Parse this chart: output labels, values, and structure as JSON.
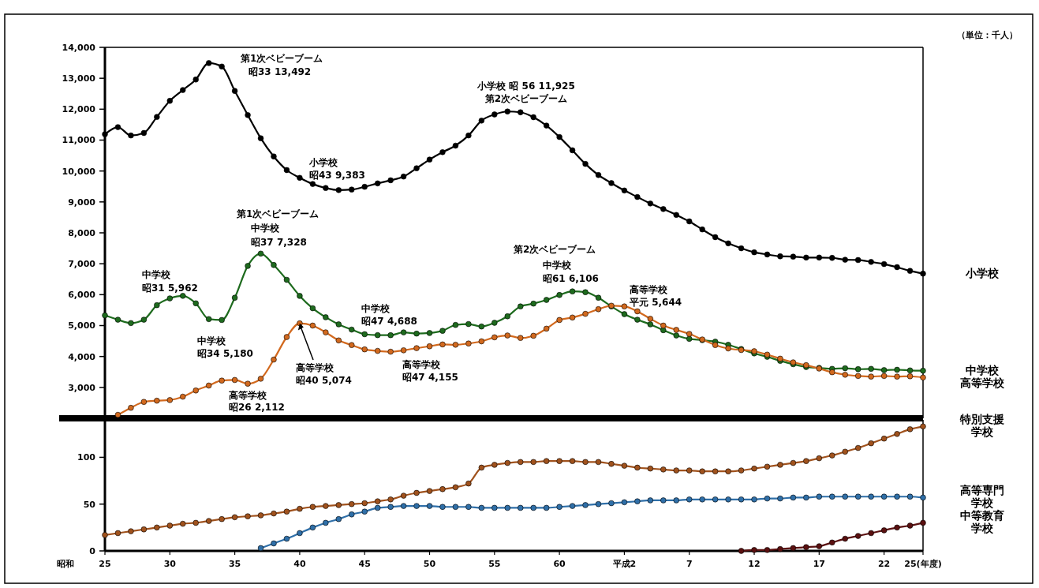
{
  "chart_data": [
    {
      "type": "line",
      "ylabel": "（単位：千人）",
      "ylim": [
        2000,
        14000
      ],
      "marker": "circle",
      "line_style": "solid",
      "categories": [
        null,
        null,
        null,
        null,
        null,
        null,
        null,
        null,
        null,
        null,
        null,
        null,
        null,
        null,
        null,
        null,
        null,
        null,
        null,
        null,
        null,
        null,
        null,
        null,
        null,
        null,
        null,
        null,
        null,
        null,
        null,
        null,
        null,
        null,
        null,
        null,
        null,
        null,
        null,
        null,
        null,
        null,
        null,
        null,
        null,
        null,
        null,
        null,
        null,
        null,
        null,
        null,
        null,
        null,
        null,
        null,
        null,
        null,
        null,
        null,
        null,
        null,
        null,
        null
      ],
      "yticks": [
        {
          "value": 2000,
          "label": null
        },
        {
          "value": 3000,
          "label": "3,000"
        },
        {
          "value": 4000,
          "label": "4,000"
        },
        {
          "value": 5000,
          "label": "5,000"
        },
        {
          "value": 6000,
          "label": "6,000"
        },
        {
          "value": 7000,
          "label": "7,000"
        },
        {
          "value": 8000,
          "label": "8,000"
        },
        {
          "value": 9000,
          "label": "9,000"
        },
        {
          "value": 10000,
          "label": "10,000"
        },
        {
          "value": 11000,
          "label": "11,000"
        },
        {
          "value": 12000,
          "label": "12,000"
        },
        {
          "value": 13000,
          "label": "13,000"
        },
        {
          "value": 14000,
          "label": "14,000"
        }
      ],
      "series": [
        {
          "name": "小学校",
          "color": "#000000",
          "values": [
            11190,
            11420,
            11150,
            11230,
            11750,
            12270,
            12620,
            12960,
            13492,
            13380,
            12590,
            11810,
            11060,
            10470,
            10030,
            9780,
            9580,
            9450,
            9383,
            9400,
            9490,
            9600,
            9700,
            9820,
            10090,
            10370,
            10610,
            10820,
            11150,
            11630,
            11830,
            11925,
            11900,
            11740,
            11470,
            11100,
            10670,
            10230,
            9870,
            9610,
            9370,
            9160,
            8950,
            8770,
            8580,
            8370,
            8110,
            7860,
            7660,
            7500,
            7370,
            7300,
            7240,
            7230,
            7200,
            7200,
            7190,
            7130,
            7120,
            7060,
            6990,
            6890,
            6770,
            6680
          ]
        },
        {
          "name": "中学校",
          "color": "#1e6b1e",
          "values": [
            5330,
            5190,
            5080,
            5190,
            5660,
            5880,
            5962,
            5720,
            5210,
            5180,
            5900,
            6930,
            7328,
            6960,
            6480,
            5960,
            5560,
            5270,
            5040,
            4870,
            4720,
            4690,
            4688,
            4780,
            4740,
            4760,
            4830,
            5020,
            5050,
            4970,
            5090,
            5300,
            5620,
            5710,
            5830,
            5990,
            6106,
            6080,
            5900,
            5620,
            5370,
            5190,
            5040,
            4850,
            4680,
            4570,
            4530,
            4480,
            4380,
            4240,
            4100,
            3990,
            3860,
            3750,
            3660,
            3630,
            3600,
            3620,
            3590,
            3600,
            3560,
            3570,
            3550,
            3540
          ]
        },
        {
          "name": "高等学校",
          "color": "#d2691e",
          "values": [
            null,
            2112,
            2340,
            2530,
            2570,
            2590,
            2700,
            2900,
            3060,
            3220,
            3240,
            3120,
            3280,
            3900,
            4630,
            5074,
            5000,
            4780,
            4520,
            4370,
            4230,
            4180,
            4155,
            4200,
            4270,
            4330,
            4390,
            4380,
            4420,
            4490,
            4620,
            4680,
            4600,
            4670,
            4900,
            5180,
            5260,
            5380,
            5530,
            5644,
            5620,
            5460,
            5220,
            5000,
            4860,
            4730,
            4550,
            4370,
            4260,
            4210,
            4170,
            4060,
            3930,
            3810,
            3720,
            3610,
            3490,
            3410,
            3370,
            3350,
            3370,
            3350,
            3360,
            3320
          ]
        }
      ],
      "annotations": [
        "第1次ベビーブーム",
        "昭33 13,492",
        "小学校",
        "昭43 9,383",
        "小学校 昭 56 11,925",
        "第2次ベビーブーム",
        "第1次ベビーブーム",
        "中学校",
        "昭37 7,328",
        "中学校",
        "昭31 5,962",
        "中学校",
        "昭34 5,180",
        "中学校",
        "昭47 4,688",
        "第2次ベビーブーム",
        "中学校",
        "昭61 6,106",
        "高等学校",
        "平元 5,644",
        {
          "text": "高等学校",
          "y": 5074
        },
        "昭40 5,074",
        "高等学校",
        "昭47 4,155",
        "高等学校",
        "昭26 2,112"
      ]
    },
    {
      "type": "line",
      "xlabel": "昭和",
      "ylim": [
        0,
        140
      ],
      "marker": "circle",
      "line_style": "solid",
      "categories": [
        "25",
        null,
        null,
        null,
        null,
        "30",
        null,
        null,
        null,
        null,
        "35",
        null,
        null,
        null,
        null,
        "40",
        null,
        null,
        null,
        null,
        "45",
        null,
        null,
        null,
        null,
        "50",
        null,
        null,
        null,
        null,
        "55",
        null,
        null,
        null,
        null,
        "60",
        null,
        null,
        null,
        null,
        "平成2",
        null,
        null,
        null,
        null,
        "7",
        null,
        null,
        null,
        null,
        "12",
        null,
        null,
        null,
        null,
        "17",
        null,
        null,
        null,
        null,
        "22",
        null,
        null,
        "25(年度)"
      ],
      "yticks": [
        0,
        50,
        100
      ],
      "series": [
        {
          "name": "特別支援学校",
          "color": "#a0521d",
          "values": [
            17,
            19,
            21,
            23,
            25,
            27,
            29,
            30,
            32,
            34,
            36,
            37,
            38,
            40,
            42,
            45,
            47,
            48,
            49,
            50,
            51,
            53,
            55,
            59,
            62,
            64,
            66,
            68,
            72,
            89,
            92,
            94,
            95,
            95,
            96,
            96,
            96,
            95,
            95,
            93,
            91,
            89,
            88,
            87,
            86,
            86,
            85,
            85,
            85,
            86,
            88,
            90,
            92,
            94,
            96,
            99,
            102,
            106,
            110,
            115,
            120,
            125,
            130,
            133
          ]
        },
        {
          "name": "高等専門学校",
          "color": "#2f6fa8",
          "values": [
            null,
            null,
            null,
            null,
            null,
            null,
            null,
            null,
            null,
            null,
            null,
            null,
            3,
            8,
            13,
            19,
            25,
            30,
            34,
            39,
            42,
            46,
            47,
            48,
            48,
            48,
            47,
            47,
            47,
            46,
            46,
            46,
            46,
            46,
            46,
            47,
            48,
            49,
            50,
            51,
            52,
            53,
            54,
            54,
            54,
            55,
            55,
            55,
            55,
            55,
            55,
            56,
            56,
            57,
            57,
            58,
            58,
            58,
            58,
            58,
            58,
            58,
            58,
            57
          ]
        },
        {
          "name": "中等教育学校",
          "color": "#5a1010",
          "values": [
            null,
            null,
            null,
            null,
            null,
            null,
            null,
            null,
            null,
            null,
            null,
            null,
            null,
            null,
            null,
            null,
            null,
            null,
            null,
            null,
            null,
            null,
            null,
            null,
            null,
            null,
            null,
            null,
            null,
            null,
            null,
            null,
            null,
            null,
            null,
            null,
            null,
            null,
            null,
            null,
            null,
            null,
            null,
            null,
            null,
            null,
            null,
            null,
            null,
            0,
            1,
            1,
            2,
            3,
            4,
            5,
            9,
            13,
            16,
            19,
            22,
            25,
            27,
            30
          ]
        }
      ]
    }
  ]
}
